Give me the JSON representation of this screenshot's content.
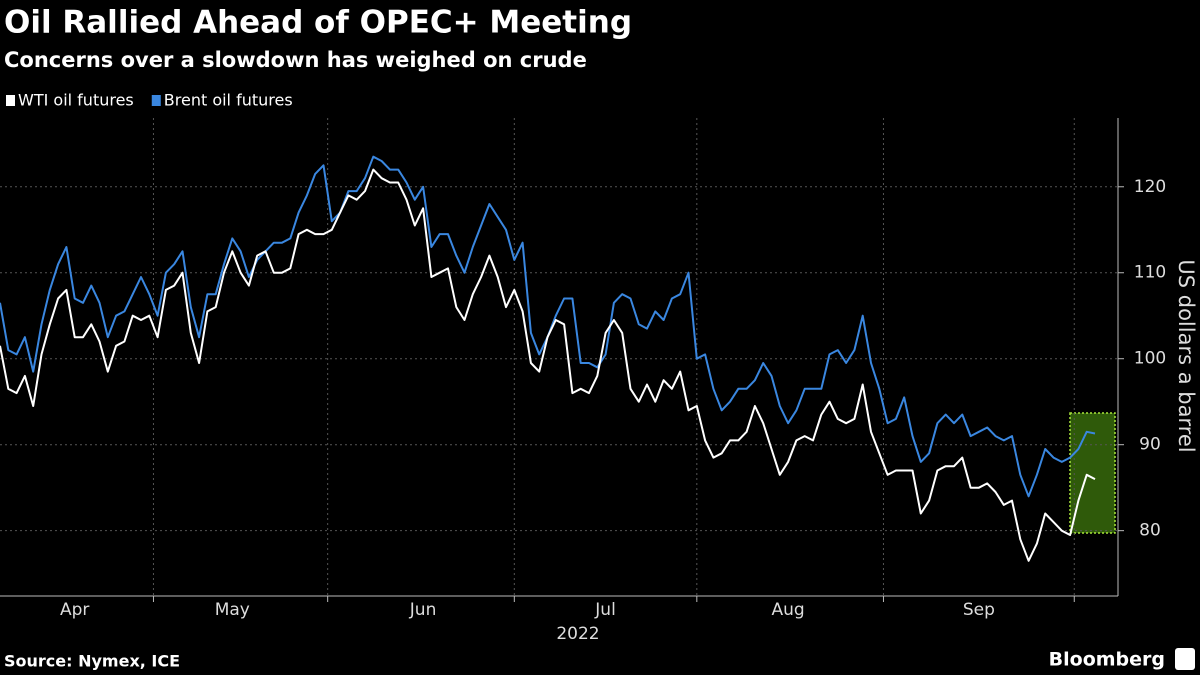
{
  "chart_data": {
    "type": "line",
    "title": "Oil Rallied Ahead of OPEC+ Meeting",
    "subtitle": "Concerns over a slowdown has weighed on crude",
    "x_label": "2022",
    "y_label": "US dollars a barrel",
    "source": "Source: Nymex, ICE",
    "brand": "Bloomberg",
    "categories": [
      null,
      null,
      null,
      null,
      null,
      null,
      null,
      null,
      null,
      "Apr",
      null,
      null,
      null,
      null,
      null,
      null,
      null,
      null,
      null,
      null,
      null,
      null,
      null,
      null,
      null,
      null,
      null,
      null,
      "May",
      null,
      null,
      null,
      null,
      null,
      null,
      null,
      null,
      null,
      null,
      null,
      null,
      null,
      null,
      null,
      null,
      null,
      null,
      null,
      null,
      null,
      null,
      "Jun",
      null,
      null,
      null,
      null,
      null,
      null,
      null,
      null,
      null,
      null,
      null,
      null,
      null,
      null,
      null,
      null,
      null,
      null,
      null,
      null,
      null,
      "Jul",
      null,
      null,
      null,
      null,
      null,
      null,
      null,
      null,
      null,
      null,
      null,
      null,
      null,
      null,
      null,
      null,
      null,
      null,
      null,
      null,
      null,
      "Aug",
      null,
      null,
      null,
      null,
      null,
      null,
      null,
      null,
      null,
      null,
      null,
      null,
      null,
      null,
      null,
      null,
      null,
      null,
      null,
      null,
      null,
      null,
      "Sep",
      null,
      null,
      null,
      null,
      null,
      null,
      null,
      null,
      null,
      null,
      null,
      null,
      null,
      null
    ],
    "series": [
      {
        "name": "WTI oil futures",
        "color": "#ffffff",
        "values": [
          101.5,
          96.5,
          96,
          98,
          94.5,
          100.5,
          104,
          107,
          108,
          102.5,
          102.5,
          104,
          102,
          98.5,
          101.5,
          102,
          105,
          104.5,
          105,
          102.5,
          108,
          108.5,
          110,
          103,
          99.5,
          105.5,
          106,
          110,
          112.5,
          110,
          108.5,
          112,
          112.5,
          110,
          110,
          110.5,
          114.5,
          115,
          114.5,
          114.5,
          115,
          117,
          119,
          118.5,
          119.5,
          122,
          121,
          120.5,
          120.5,
          118.5,
          115.5,
          117.5,
          109.5,
          110,
          110.5,
          106,
          104.5,
          107.5,
          109.5,
          112,
          109.5,
          106,
          108,
          105.5,
          99.5,
          98.5,
          102.5,
          104.5,
          104,
          96,
          96.5,
          96,
          98,
          103,
          104.5,
          103,
          96.5,
          95,
          97,
          95,
          97.5,
          96.5,
          98.5,
          94,
          94.5,
          90.5,
          88.5,
          89,
          90.5,
          90.5,
          91.5,
          94.5,
          92.5,
          89.5,
          86.5,
          88,
          90.5,
          91,
          90.5,
          93.5,
          95,
          93,
          92.5,
          93,
          97,
          91.5,
          89,
          86.5,
          87,
          87,
          87,
          82,
          83.5,
          87,
          87.5,
          87.5,
          88.5,
          85,
          85,
          85.5,
          84.5,
          83,
          83.5,
          79,
          76.5,
          78.5,
          82,
          81,
          80,
          79.5,
          83.5,
          86.5,
          86
        ]
      },
      {
        "name": "Brent oil futures",
        "color": "#3a87e0",
        "values": [
          106.5,
          101,
          100.5,
          102.5,
          98.5,
          104,
          108,
          111,
          113,
          107,
          106.5,
          108.5,
          106.5,
          102.5,
          105,
          105.5,
          107.5,
          109.5,
          107.5,
          105,
          110,
          111,
          112.5,
          106,
          102.5,
          107.5,
          107.5,
          111,
          114,
          112.5,
          109.5,
          111.5,
          112.5,
          113.5,
          113.5,
          114,
          117,
          119,
          121.5,
          122.5,
          116,
          117,
          119.5,
          119.5,
          121,
          123.5,
          123,
          122,
          122,
          120.5,
          118.5,
          120,
          113,
          114.5,
          114.5,
          112,
          110,
          113,
          115.5,
          118,
          116.5,
          115,
          111.5,
          113.5,
          103,
          100.5,
          102.5,
          105,
          107,
          107,
          99.5,
          99.5,
          99,
          100.5,
          106.5,
          107.5,
          107,
          104,
          103.5,
          105.5,
          104.5,
          107,
          107.5,
          110,
          100,
          100.5,
          96.5,
          94,
          95,
          96.5,
          96.5,
          97.5,
          99.5,
          98,
          94.5,
          92.5,
          94,
          96.5,
          96.5,
          96.5,
          100.5,
          101,
          99.5,
          101,
          105,
          99.5,
          96.5,
          92.5,
          93,
          95.5,
          91,
          88,
          89,
          92.5,
          93.5,
          92.5,
          93.5,
          91,
          91.5,
          92,
          91,
          90.5,
          91,
          86.5,
          84,
          86.5,
          89.5,
          88.5,
          88,
          88.5,
          89.5,
          91.5,
          91.3
        ]
      }
    ],
    "ylim": [
      72.4,
      128
    ],
    "yticks": [
      80,
      90,
      100,
      110,
      120
    ],
    "grid": true
  }
}
